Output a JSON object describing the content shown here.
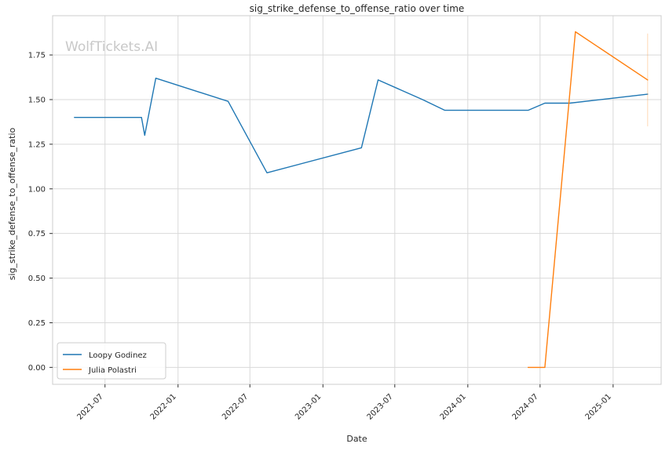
{
  "chart_data": {
    "type": "line",
    "title": "sig_strike_defense_to_offense_ratio over time",
    "xlabel": "Date",
    "ylabel": "sig_strike_defense_to_offense_ratio",
    "watermark": "WolfTickets.AI",
    "x_ticks": [
      "2021-07",
      "2022-01",
      "2022-07",
      "2023-01",
      "2023-07",
      "2024-01",
      "2024-07",
      "2025-01"
    ],
    "y_ticks": [
      "0.00",
      "0.25",
      "0.50",
      "0.75",
      "1.00",
      "1.25",
      "1.50",
      "1.75"
    ],
    "xlim": [
      "2021-02-19",
      "2025-05-02"
    ],
    "ylim": [
      -0.095,
      1.97
    ],
    "grid": true,
    "legend_position": "lower-left",
    "series": [
      {
        "name": "Loopy Godinez",
        "color": "#1f77b4",
        "points": [
          {
            "x": "2021-04-15",
            "y": 1.4
          },
          {
            "x": "2021-10-01",
            "y": 1.4
          },
          {
            "x": "2021-10-09",
            "y": 1.3
          },
          {
            "x": "2021-11-06",
            "y": 1.62
          },
          {
            "x": "2022-05-07",
            "y": 1.49
          },
          {
            "x": "2022-08-13",
            "y": 1.09
          },
          {
            "x": "2023-04-08",
            "y": 1.23
          },
          {
            "x": "2023-05-20",
            "y": 1.61
          },
          {
            "x": "2023-09-09",
            "y": 1.5
          },
          {
            "x": "2023-11-04",
            "y": 1.44
          },
          {
            "x": "2024-06-01",
            "y": 1.44
          },
          {
            "x": "2024-07-13",
            "y": 1.48
          },
          {
            "x": "2024-09-14",
            "y": 1.48
          },
          {
            "x": "2025-03-29",
            "y": 1.53
          }
        ]
      },
      {
        "name": "Julia Polastri",
        "color": "#ff7f0e",
        "points": [
          {
            "x": "2024-06-01",
            "y": 0.0
          },
          {
            "x": "2024-07-13",
            "y": 0.0
          },
          {
            "x": "2024-09-28",
            "y": 1.88
          },
          {
            "x": "2025-03-29",
            "y": 1.61
          }
        ],
        "error_bar": {
          "x": "2025-03-29",
          "y_low": 1.35,
          "y_high": 1.87
        }
      }
    ]
  }
}
